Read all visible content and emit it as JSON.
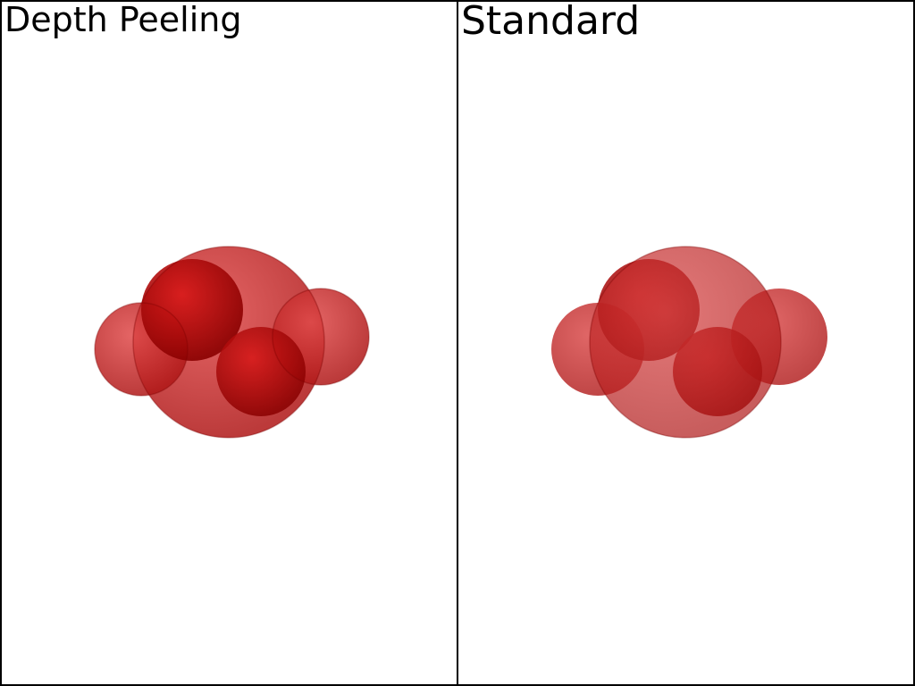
{
  "viewports": [
    {
      "id": "left",
      "title": "Depth Peeling"
    },
    {
      "id": "right",
      "title": "Standard"
    }
  ],
  "colors": {
    "sphere_base": "#cc1a1a",
    "sphere_dark": "#8a0000",
    "sphere_light": "#e04a4a",
    "background": "#ffffff",
    "border": "#000000"
  }
}
